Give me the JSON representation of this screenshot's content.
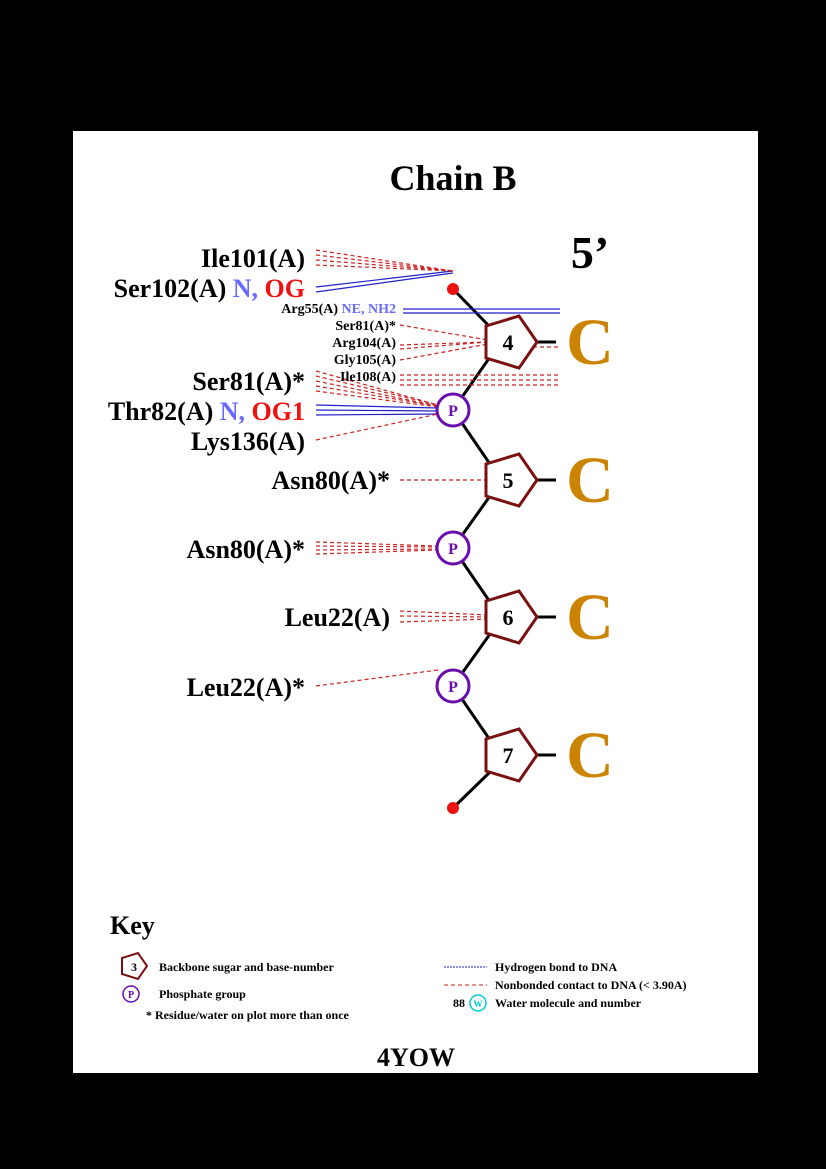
{
  "title": "Chain B",
  "strand_end": "5’",
  "footer": "4YOW",
  "colors": {
    "background": "#000000",
    "panel": "#ffffff",
    "sugar": "#7a1010",
    "phosphate": "#6a0dad",
    "base": "#cc8400",
    "hbond": "#2222cc",
    "nonbonded": "#cc2222",
    "atom_n": "#6a6aff",
    "atom_o": "#ee1111",
    "terminal": "#ee1111",
    "water": "#00cccc"
  },
  "nucleotides": [
    {
      "number": "4",
      "base": "C"
    },
    {
      "number": "5",
      "base": "C"
    },
    {
      "number": "6",
      "base": "C"
    },
    {
      "number": "7",
      "base": "C"
    }
  ],
  "phosphate_label": "P",
  "residues": {
    "ile101": "Ile101(A)",
    "ser102": "Ser102(A)",
    "ser102_n": "N,",
    "ser102_og": "OG",
    "arg55": "Arg55(A)",
    "arg55_atoms": "NE, NH2",
    "ser81_small": "Ser81(A)*",
    "arg104": "Arg104(A)",
    "gly105": "Gly105(A)",
    "ile108": "Ile108(A)",
    "ser81_large": "Ser81(A)*",
    "thr82": "Thr82(A)",
    "thr82_n": "N,",
    "thr82_og1": "OG1",
    "lys136": "Lys136(A)",
    "asn80_sugar": "Asn80(A)*",
    "asn80_phos": "Asn80(A)*",
    "leu22_sugar": "Leu22(A)",
    "leu22_phos": "Leu22(A)*"
  },
  "key": {
    "title": "Key",
    "sugar_sample": "3",
    "sugar_desc": "Backbone sugar and base-number",
    "phosphate_sample": "P",
    "phosphate_desc": "Phosphate group",
    "star_desc": "* Residue/water on plot more than once",
    "hbond_desc": "Hydrogen bond to DNA",
    "nonbonded_desc": "Nonbonded contact to DNA (< 3.90A)",
    "water_number": "88",
    "water_sample": "W",
    "water_desc": "Water molecule and number"
  }
}
